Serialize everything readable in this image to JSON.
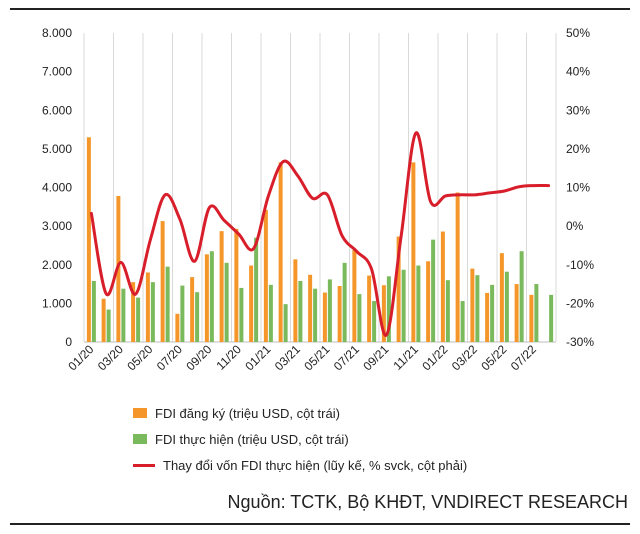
{
  "colors": {
    "registered": "#f5962a",
    "implemented": "#7ab95c",
    "change": "#d81e2a",
    "grid": "#d9d9d9"
  },
  "legend": {
    "registered": "FDI đăng ký (triệu USD, cột trái)",
    "implemented": "FDI thực hiện (triệu USD, cột trái)",
    "change": "Thay đổi vốn FDI thực hiện (lũy kế, % svck, cột phải)"
  },
  "source": "Nguồn: TCTK, Bộ KHĐT, VNDIRECT RESEARCH",
  "chart_data": {
    "type": "bar",
    "x": [
      "01/20",
      "02/20",
      "03/20",
      "04/20",
      "05/20",
      "06/20",
      "07/20",
      "08/20",
      "09/20",
      "10/20",
      "11/20",
      "12/20",
      "01/21",
      "02/21",
      "03/21",
      "04/21",
      "05/21",
      "06/21",
      "07/21",
      "08/21",
      "09/21",
      "10/21",
      "11/21",
      "12/21",
      "01/22",
      "02/22",
      "03/22",
      "04/22",
      "05/22",
      "06/22",
      "07/22",
      "08/22"
    ],
    "x_tick_labels": [
      "01/20",
      "03/20",
      "05/20",
      "07/20",
      "09/20",
      "11/20",
      "01/21",
      "03/21",
      "05/21",
      "07/21",
      "09/21",
      "11/21",
      "01/22",
      "03/22",
      "05/22",
      "07/22"
    ],
    "series": [
      {
        "name": "FDI đăng ký (triệu USD, cột trái)",
        "axis": "left",
        "type": "bar",
        "values": [
          5300,
          1120,
          3780,
          1550,
          1800,
          3130,
          730,
          1680,
          2270,
          2870,
          2930,
          1980,
          3420,
          4650,
          2140,
          1740,
          1280,
          1450,
          2380,
          1720,
          1470,
          2730,
          4650,
          2090,
          2860,
          3870,
          1900,
          1270,
          2300,
          1500,
          1220,
          0
        ]
      },
      {
        "name": "FDI thực hiện (triệu USD, cột trái)",
        "axis": "left",
        "type": "bar",
        "values": [
          1580,
          840,
          1380,
          1150,
          1550,
          1950,
          1460,
          1290,
          2350,
          2050,
          1400,
          2700,
          1480,
          980,
          1580,
          1380,
          1620,
          2050,
          1240,
          1060,
          1700,
          1870,
          1980,
          2650,
          1600,
          1060,
          1730,
          1480,
          1820,
          2350,
          1500,
          1220
        ]
      },
      {
        "name": "Thay đổi vốn FDI thực hiện (lũy kế, % svck, cột phải)",
        "axis": "right",
        "type": "line",
        "values": [
          3.3,
          -17.5,
          -9.4,
          -17.6,
          -3.5,
          8.1,
          1.8,
          -9.1,
          4.8,
          1.5,
          -2.1,
          -5.8,
          7.8,
          16.7,
          13.0,
          7.2,
          8.1,
          -2.5,
          -6.6,
          -11.2,
          -28.2,
          -2.6,
          24.1,
          6.3,
          7.8,
          8.1,
          8.1,
          8.6,
          9.1,
          10.2,
          10.5,
          10.5
        ]
      }
    ],
    "y_left": {
      "range": [
        0,
        8000
      ],
      "tick_labels": [
        "0",
        "1.000",
        "2.000",
        "3.000",
        "4.000",
        "5.000",
        "6.000",
        "7.000",
        "8.000"
      ]
    },
    "y_right": {
      "range": [
        -30,
        50
      ],
      "tick_labels": [
        "-30%",
        "-20%",
        "-10%",
        "0%",
        "10%",
        "20%",
        "30%",
        "40%",
        "50%"
      ]
    },
    "grid": "vertical",
    "legend_position": "bottom"
  }
}
